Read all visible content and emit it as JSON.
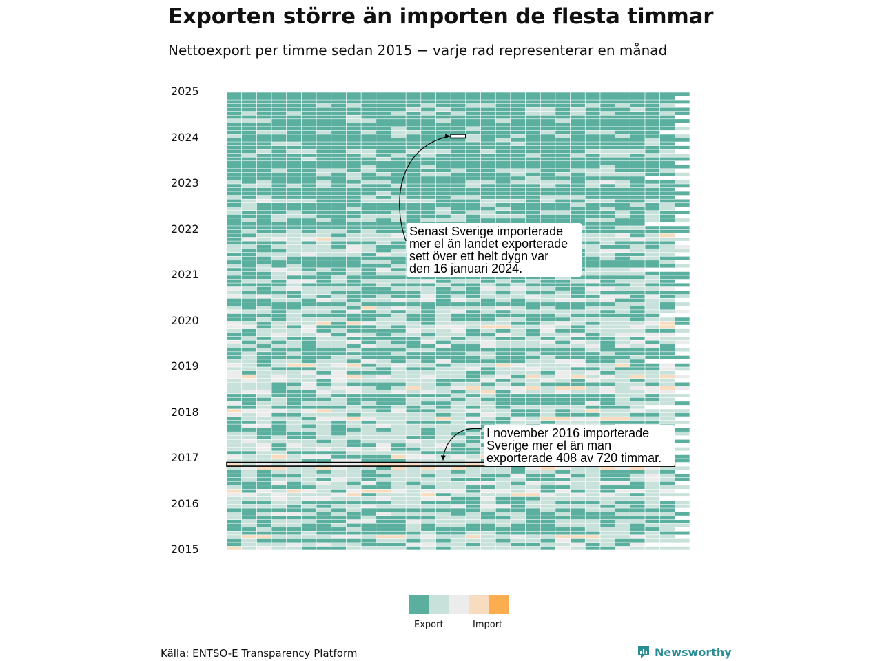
{
  "header": {
    "title": "Exporten större än importen de flesta timmar",
    "subtitle": "Nettoexport per timme sedan 2015 − varje rad representerar en månad"
  },
  "colors": {
    "strong_export": "#5aaf9f",
    "weak_export": "#c8e1da",
    "neutral": "#ececec",
    "weak_import": "#f8dcc0",
    "strong_import": "#fbad4f",
    "annotation_box_stroke": "#000000"
  },
  "chart_data": {
    "type": "heatmap",
    "title": "Exporten större än importen de flesta timmar",
    "subtitle": "Nettoexport per timme sedan 2015 − varje rad representerar en månad",
    "row_unit": "month",
    "cell_unit": "hour",
    "rows_from": "2015-01",
    "rows_to": "2025-01",
    "y_tick_labels": [
      "2025",
      "2024",
      "2023",
      "2022",
      "2021",
      "2020",
      "2019",
      "2018",
      "2017",
      "2016",
      "2015"
    ],
    "color_scale": [
      {
        "color": "#5aaf9f",
        "meaning": "Export"
      },
      {
        "color": "#c8e1da",
        "meaning": ""
      },
      {
        "color": "#ececec",
        "meaning": ""
      },
      {
        "color": "#f8dcc0",
        "meaning": ""
      },
      {
        "color": "#fbad4f",
        "meaning": "Import"
      }
    ],
    "legend": {
      "export_label": "Export",
      "import_label": "Import",
      "placement": "bottom"
    },
    "highlights": [
      {
        "period": "2024-01-16",
        "unit": "day"
      },
      {
        "period": "2016-11",
        "unit": "month",
        "import_hours": 408,
        "total_hours": 720
      }
    ],
    "annotations": [
      {
        "text": "Senast Sverige importerade\nmer el än landet exporterade\nsett över ett helt dygn var\nden 16 januari 2024."
      },
      {
        "text": "I november 2016 importerade\nSverige mer el än man\nexporterade 408 av 720 timmar."
      }
    ]
  },
  "footer": {
    "source": "Källa: ENTSO-E Transparency Platform",
    "brand": "Newsworthy"
  }
}
